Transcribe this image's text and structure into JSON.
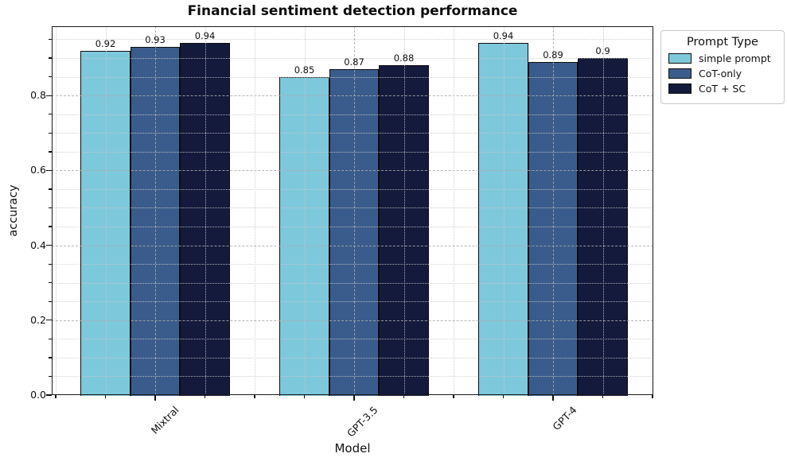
{
  "chart_data": {
    "type": "bar",
    "title": "Financial sentiment detection performance",
    "xlabel": "Model",
    "ylabel": "accuracy",
    "categories": [
      "Mixtral",
      "GPT-3.5",
      "GPT-4"
    ],
    "series": [
      {
        "name": "simple prompt",
        "color": "#7EC8DC",
        "values": [
          0.92,
          0.85,
          0.94
        ],
        "value_labels": [
          "0.92",
          "0.85",
          "0.94"
        ]
      },
      {
        "name": "CoT-only",
        "color": "#3A5C8C",
        "values": [
          0.93,
          0.87,
          0.89
        ],
        "value_labels": [
          "0.93",
          "0.87",
          "0.89"
        ]
      },
      {
        "name": "CoT + SC",
        "color": "#141A3C",
        "values": [
          0.94,
          0.88,
          0.9
        ],
        "value_labels": [
          "0.94",
          "0.88",
          "0.9"
        ]
      }
    ],
    "legend": {
      "title": "Prompt Type",
      "position": "top-right-outside"
    },
    "ylim": [
      0,
      0.985
    ],
    "ytick_values": [
      0,
      0.2,
      0.4,
      0.6,
      0.8
    ],
    "ytick_labels": [
      "0.0",
      "0.2",
      "0.4",
      "0.6",
      "0.8"
    ],
    "minor_tick_step": 0.05,
    "grid": "major dashed + minor dotted, drawn above bars",
    "bar_edge_color": "#0d0d0d"
  }
}
